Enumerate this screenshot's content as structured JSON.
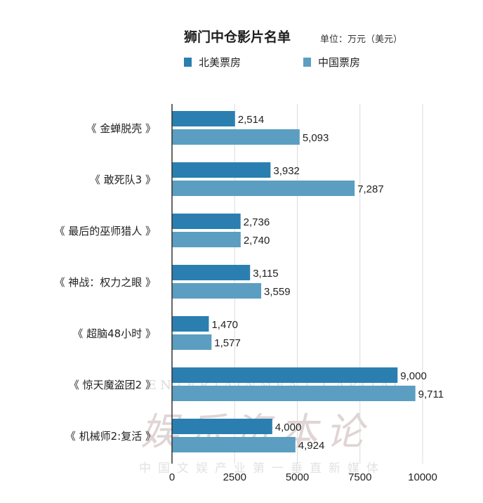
{
  "title": "狮门中仓影片名单",
  "unit": "单位：万元（美元）",
  "legend": [
    {
      "label": "北美票房",
      "color": "#2a7fb0"
    },
    {
      "label": "中国票房",
      "color": "#5b9ec1"
    }
  ],
  "watermark": {
    "en": "ENTERTAINMENT CAPITAL",
    "cn": "娱乐资本论",
    "sub": "中国文娱产业第一垂直新媒体"
  },
  "chart_data": {
    "type": "bar",
    "orientation": "horizontal",
    "categories": [
      "《 金蝉脱壳 》",
      "《 敢死队3 》",
      "《 最后的巫师猎人 》",
      "《 神战：权力之眼 》",
      "《 超脑48小时 》",
      "《 惊天魔盗团2 》",
      "《 机械师2:复活 》"
    ],
    "series": [
      {
        "name": "北美票房",
        "values": [
          2514,
          3932,
          2736,
          3115,
          1470,
          9000,
          4000
        ],
        "labels": [
          "2,514",
          "3,932",
          "2,736",
          "3,115",
          "1,470",
          "9,000",
          "4,000"
        ]
      },
      {
        "name": "中国票房",
        "values": [
          5093,
          7287,
          2740,
          3559,
          1577,
          9711,
          4924
        ],
        "labels": [
          "5,093",
          "7,287",
          "2,740",
          "3,559",
          "1,577",
          "9,711",
          "4,924"
        ]
      }
    ],
    "xlim": [
      0,
      10000
    ],
    "xticks": [
      0,
      2500,
      5000,
      7500,
      10000
    ],
    "xtick_labels": [
      "0",
      "2500",
      "5000",
      "7500",
      "10000"
    ],
    "grid": true,
    "legend_position": "top"
  }
}
